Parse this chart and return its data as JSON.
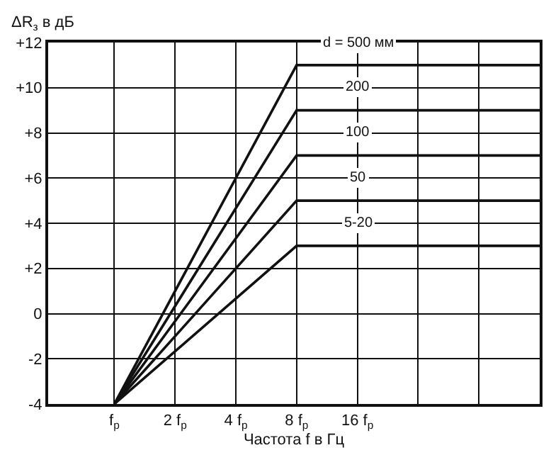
{
  "chart_data": {
    "type": "line",
    "xlabel": "Частота f в Гц",
    "ylabel": "ΔR$_{з}$ в дБ",
    "x": [
      1,
      8,
      128
    ],
    "series": [
      {
        "name": "d = 500 мм",
        "color": "#111111",
        "values": [
          -4,
          11,
          11
        ]
      },
      {
        "name": "200",
        "color": "#111111",
        "values": [
          -4,
          9,
          9
        ]
      },
      {
        "name": "100",
        "color": "#111111",
        "values": [
          -4,
          7,
          7
        ]
      },
      {
        "name": "50",
        "color": "#111111",
        "values": [
          -4,
          5,
          5
        ]
      },
      {
        "name": "5-20",
        "color": "#111111",
        "values": [
          -4,
          3,
          3
        ]
      }
    ],
    "log": "x",
    "xlim": [
      0.47,
      128
    ],
    "xticks": [
      {
        "value": 1,
        "label": "f$_{р}$"
      },
      {
        "value": 2,
        "label": "2 f$_{р}$"
      },
      {
        "value": 4,
        "label": "4 f$_{р}$"
      },
      {
        "value": 8,
        "label": "8 f$_{р}$"
      },
      {
        "value": 16,
        "label": "16 f$_{р}$"
      },
      {
        "value": 32,
        "label": null
      },
      {
        "value": 64,
        "label": null
      }
    ],
    "ylim": [
      -4,
      12
    ],
    "yticks": [
      {
        "value": -4,
        "label": "-4"
      },
      {
        "value": -2,
        "label": "-2"
      },
      0,
      {
        "value": 2,
        "label": "+2"
      },
      {
        "value": 4,
        "label": "+4"
      },
      {
        "value": 6,
        "label": "+6"
      },
      {
        "value": 8,
        "label": "+8"
      },
      {
        "value": 10,
        "label": "+10"
      },
      {
        "value": 12,
        "label": "+12"
      }
    ],
    "grid": true,
    "legend": false,
    "marker": "none",
    "line_style": "solid"
  }
}
